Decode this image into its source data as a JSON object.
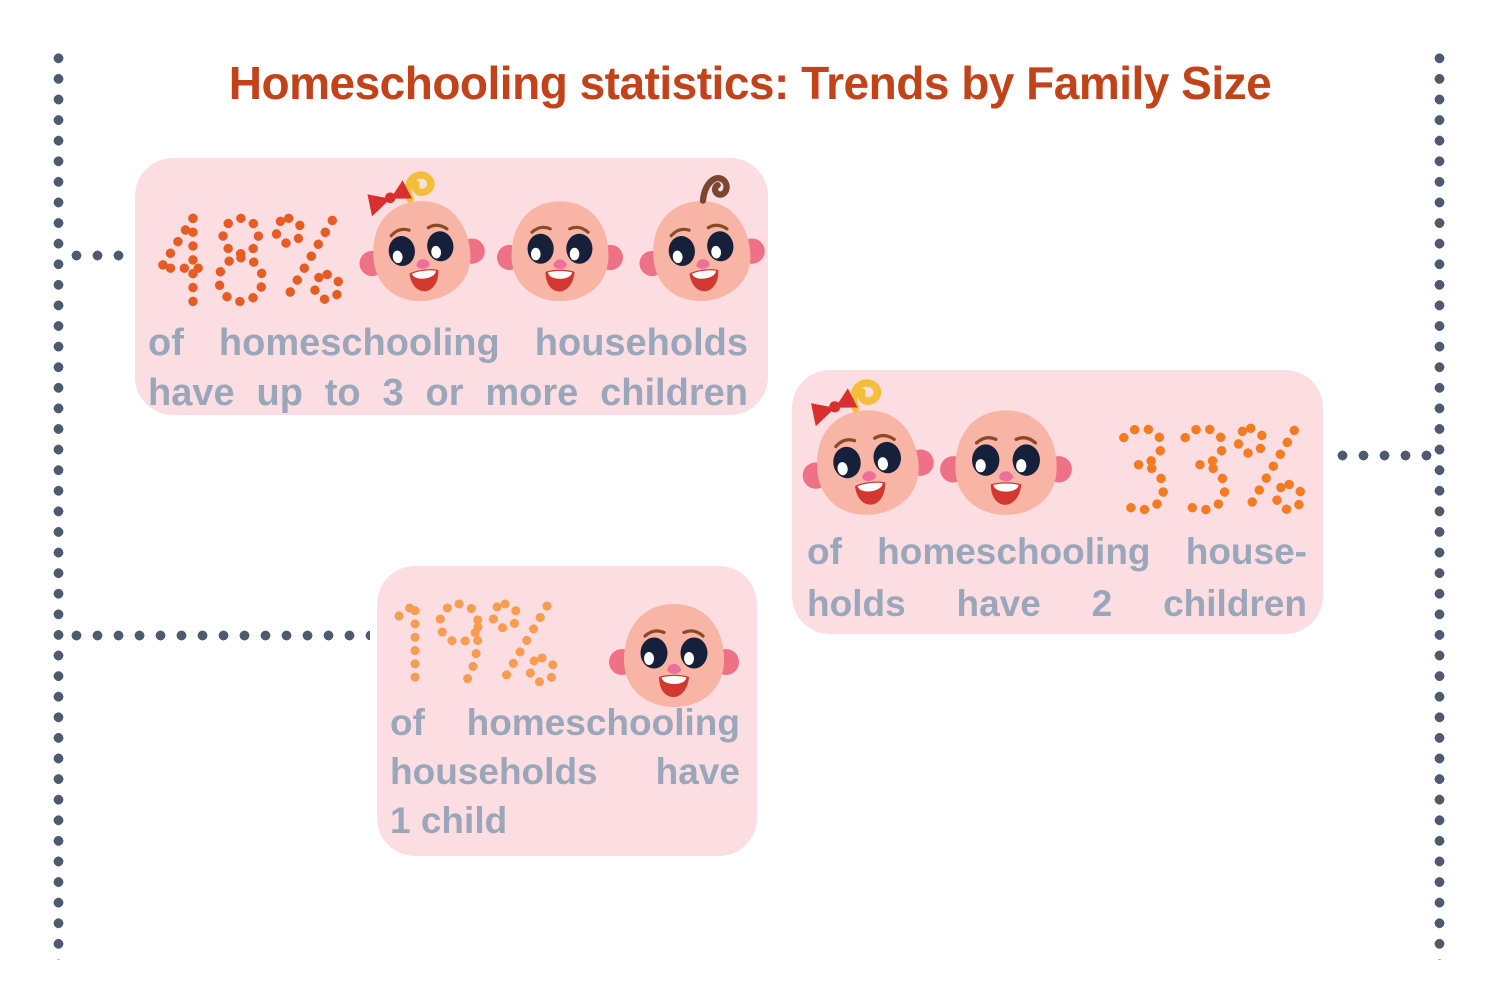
{
  "title": {
    "text": "Homeschooling statistics: Trends by Family Size",
    "color": "#c2431a"
  },
  "theme": {
    "background": "#ffffff",
    "card_background": "#fcdee2",
    "caption_color": "#9aa6ba",
    "connector_dot_color": "#4e5b6e"
  },
  "illustration": {
    "skin": "#f8b5a5",
    "ear_blush": "#ee7186",
    "eye": "#16203b",
    "eye_highlight": "#ffffff",
    "eyebrow": "#8a4a28",
    "nose": "#ee6f99",
    "mouth": "#d23730",
    "teeth": "#ffffff",
    "girl_curl": "#f4be39",
    "girl_bow": "#d92f2f",
    "boy_curl": "#7a4630"
  },
  "cards": [
    {
      "id": "three-or-more-children",
      "percent": "48%",
      "percent_color": "#e65c23",
      "babies": [
        "baby-girl",
        "baby-bald",
        "baby-curl"
      ],
      "caption_lines": [
        {
          "text": "of homeschooling households",
          "justify": true
        },
        {
          "text": "have up to 3 or more children",
          "justify": true
        }
      ]
    },
    {
      "id": "two-children",
      "percent": "33%",
      "percent_color": "#f47b21",
      "babies": [
        "baby-girl",
        "baby-bald"
      ],
      "caption_lines": [
        {
          "text": "of homeschooling house-",
          "justify": true
        },
        {
          "text": "holds have 2 children",
          "justify": true
        }
      ]
    },
    {
      "id": "one-child",
      "percent": "19%",
      "percent_color": "#f89c51",
      "babies": [
        "baby-bald"
      ],
      "caption_lines": [
        {
          "text": "of homeschooling",
          "justify": true
        },
        {
          "text": "households have",
          "justify": true
        },
        {
          "text": "1 child",
          "justify": false
        }
      ]
    }
  ],
  "chart_data": {
    "type": "pictograph",
    "title": "Homeschooling statistics: Trends by Family Size",
    "categories": [
      "3 or more children",
      "2 children",
      "1 child"
    ],
    "values": [
      48,
      33,
      19
    ],
    "unit": "%",
    "icon_counts": [
      3,
      2,
      1
    ],
    "labels": [
      "48% of homeschooling households have up to 3 or more children",
      "33% of homeschooling households have 2 children",
      "19% of homeschooling households have 1 child"
    ],
    "legend_position": "none",
    "grid": false
  }
}
